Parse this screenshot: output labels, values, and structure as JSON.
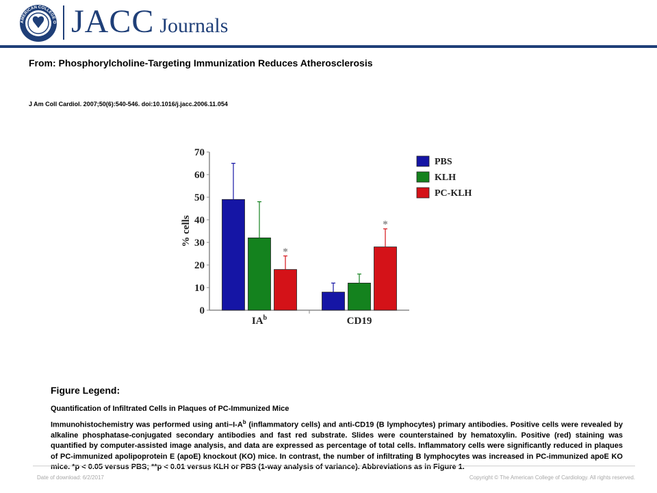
{
  "header": {
    "logo_name": "JACC",
    "logo_suffix": "Journals",
    "seal_text": "AMERICAN COLLEGE OF CARDIOLOGY",
    "brand_color": "#1f3f78"
  },
  "article": {
    "from_line": "From: Phosphorylcholine-Targeting Immunization Reduces Atherosclerosis",
    "citation": "J Am Coll Cardiol. 2007;50(6):540-546. doi:10.1016/j.jacc.2006.11.054"
  },
  "chart_data": {
    "type": "bar",
    "categories": [
      "IA",
      "CD19"
    ],
    "category_superscripts": [
      "b",
      ""
    ],
    "series": [
      {
        "name": "PBS",
        "color": "#1515a5",
        "values": [
          49,
          8
        ],
        "errors": [
          16,
          4
        ]
      },
      {
        "name": "KLH",
        "color": "#14821e",
        "values": [
          32,
          12
        ],
        "errors": [
          16,
          4
        ]
      },
      {
        "name": "PC-KLH",
        "color": "#d41218",
        "values": [
          18,
          28
        ],
        "errors": [
          6,
          8
        ],
        "annotations": [
          "*",
          "*"
        ]
      }
    ],
    "ylabel": "% cells",
    "ylim": [
      0,
      70
    ],
    "yticks": [
      "0",
      "10",
      "20",
      "30",
      "40",
      "50",
      "60",
      "70"
    ],
    "legend": "top-right",
    "grid": false
  },
  "legend_section": {
    "heading": "Figure Legend:",
    "title": "Quantification of Infiltrated Cells in Plaques of PC-Immunized Mice",
    "body_before_sup": "Immunohistochemistry was performed using anti–I-A",
    "body_sup": "b",
    "body_after_sup": " (inflammatory cells) and anti-CD19 (B lymphocytes) primary antibodies. Positive cells were revealed by alkaline phosphatase-conjugated secondary antibodies and fast red substrate. Slides were counterstained by hematoxylin. Positive (red) staining was quantified by computer-assisted image analysis, and data are expressed as percentage of total cells. Inflammatory cells were significantly reduced in plaques of PC-immunized apolipoprotein E (apoE) knockout (KO) mice. In contrast, the number of infiltrating B lymphocytes was increased in PC-immunized apoE KO mice. *p < 0.05 versus PBS; **p < 0.01 versus KLH or PBS (1-way analysis of variance). Abbreviations as in Figure 1."
  },
  "footer": {
    "date": "Date of download: 6/2/2017",
    "copyright": "Copyright © The American College of Cardiology. All rights reserved."
  }
}
